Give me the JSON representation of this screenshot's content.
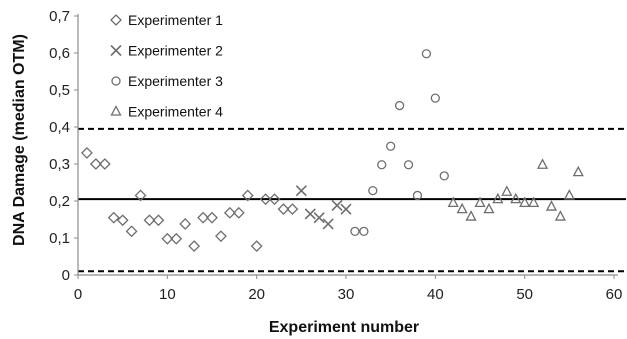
{
  "chart_data": {
    "type": "scatter",
    "xlabel": "Experiment number",
    "ylabel": "DNA Damage (median OTM)",
    "xlim": [
      0,
      60
    ],
    "ylim": [
      0,
      0.7
    ],
    "x_ticks": [
      "0",
      "10",
      "20",
      "30",
      "40",
      "50",
      "60"
    ],
    "y_ticks": [
      "0",
      "0,1",
      "0,2",
      "0,3",
      "0,4",
      "0,5",
      "0,6",
      "0,7"
    ],
    "grid": false,
    "legend_position": "top-left",
    "reference_lines": [
      {
        "y": 0.205,
        "style": "solid"
      },
      {
        "y": 0.395,
        "style": "dashed"
      },
      {
        "y": 0.01,
        "style": "dashed"
      }
    ],
    "series": [
      {
        "name": "Experimenter 1",
        "marker": "diamond",
        "x": [
          1,
          2,
          3,
          4,
          5,
          6,
          7,
          8,
          9,
          10,
          11,
          12,
          13,
          14,
          15,
          16,
          17,
          18,
          19,
          20,
          21,
          22,
          23,
          24
        ],
        "y": [
          0.33,
          0.3,
          0.3,
          0.155,
          0.148,
          0.118,
          0.215,
          0.148,
          0.148,
          0.098,
          0.098,
          0.138,
          0.078,
          0.155,
          0.155,
          0.105,
          0.168,
          0.168,
          0.215,
          0.078,
          0.205,
          0.205,
          0.178,
          0.178
        ]
      },
      {
        "name": "Experimenter 2",
        "marker": "x",
        "x": [
          25,
          26,
          27,
          28,
          29,
          30
        ],
        "y": [
          0.228,
          0.165,
          0.155,
          0.138,
          0.188,
          0.178
        ]
      },
      {
        "name": "Experimenter 3",
        "marker": "circle",
        "x": [
          31,
          32,
          33,
          34,
          35,
          36,
          37,
          38,
          39,
          40,
          41
        ],
        "y": [
          0.118,
          0.118,
          0.228,
          0.298,
          0.348,
          0.458,
          0.298,
          0.215,
          0.598,
          0.478,
          0.268
        ]
      },
      {
        "name": "Experimenter 4",
        "marker": "triangle",
        "x": [
          42,
          43,
          44,
          45,
          46,
          47,
          48,
          49,
          50,
          51,
          52,
          53,
          54,
          55,
          56
        ],
        "y": [
          0.195,
          0.178,
          0.158,
          0.195,
          0.178,
          0.205,
          0.225,
          0.205,
          0.195,
          0.195,
          0.298,
          0.185,
          0.158,
          0.215,
          0.278
        ]
      }
    ]
  },
  "colors": {
    "marker_stroke": "#6e6e6e",
    "axis": "#8c8c8c",
    "reference_line": "#000000"
  }
}
